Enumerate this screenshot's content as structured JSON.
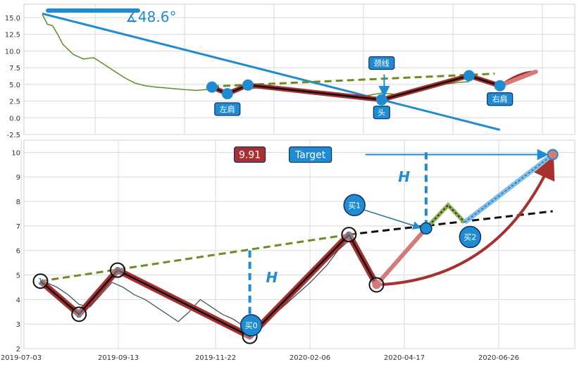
{
  "chart_data": [
    {
      "type": "line",
      "ylim": [
        -2.5,
        17
      ],
      "yticks": [
        "-2.5",
        "0.0",
        "2.5",
        "5.0",
        "7.5",
        "10.0",
        "12.5",
        "15.0"
      ],
      "grid": true,
      "angle_label": "∡48.6°",
      "series": [
        {
          "name": "",
          "points": [
            [
              0.0,
              15.5
            ],
            [
              0.01,
              14.0
            ],
            [
              0.02,
              13.8
            ],
            [
              0.03,
              12.5
            ],
            [
              0.04,
              11.0
            ],
            [
              0.06,
              9.5
            ],
            [
              0.08,
              8.8
            ],
            [
              0.1,
              9.0
            ],
            [
              0.12,
              8.0
            ],
            [
              0.14,
              7.0
            ],
            [
              0.16,
              6.0
            ],
            [
              0.18,
              5.2
            ],
            [
              0.2,
              4.8
            ],
            [
              0.22,
              4.6
            ],
            [
              0.25,
              4.4
            ],
            [
              0.28,
              4.2
            ],
            [
              0.3,
              4.1
            ],
            [
              0.33,
              4.3
            ],
            [
              0.36,
              4.0
            ],
            [
              0.38,
              4.5
            ],
            [
              0.4,
              4.3
            ],
            [
              0.43,
              4.6
            ],
            [
              0.46,
              4.2
            ],
            [
              0.49,
              3.9
            ],
            [
              0.52,
              3.8
            ],
            [
              0.55,
              3.6
            ],
            [
              0.57,
              3.5
            ],
            [
              0.6,
              3.1
            ],
            [
              0.63,
              3.3
            ],
            [
              0.66,
              3.7
            ],
            [
              0.69,
              3.5
            ],
            [
              0.72,
              3.9
            ],
            [
              0.75,
              4.4
            ],
            [
              0.78,
              5.0
            ],
            [
              0.81,
              5.3
            ],
            [
              0.83,
              5.4
            ]
          ]
        }
      ],
      "pattern_points": [
        [
          0.33,
          4.6
        ],
        [
          0.36,
          3.6
        ],
        [
          0.4,
          4.9
        ],
        [
          0.66,
          2.7
        ],
        [
          0.83,
          6.3
        ],
        [
          0.89,
          4.8
        ],
        [
          0.96,
          6.9
        ]
      ],
      "neckline": {
        "x": [
          0.33,
          0.88
        ],
        "y": [
          4.7,
          6.6
        ]
      },
      "trendline": {
        "x": [
          0.0,
          0.89
        ],
        "y": [
          15.6,
          -1.8
        ]
      },
      "labels": [
        {
          "text": "左肩",
          "x": 0.36,
          "y": 1.3
        },
        {
          "text": "头",
          "x": 0.66,
          "y": 0.8
        },
        {
          "text": "右肩",
          "x": 0.89,
          "y": 2.8
        },
        {
          "text": "颈线",
          "x": 0.66,
          "y": 8.2
        }
      ]
    },
    {
      "type": "line",
      "x_ticks": [
        "2019-07-03",
        "2019-09-13",
        "2019-11-22",
        "2020-02-06",
        "2020-04-17",
        "2020-06-26"
      ],
      "ylim": [
        2,
        10.5
      ],
      "yticks": [
        "2",
        "3",
        "4",
        "5",
        "6",
        "7",
        "8",
        "9",
        "10"
      ],
      "grid": true,
      "price_series": [
        [
          0.04,
          4.7
        ],
        [
          0.06,
          4.5
        ],
        [
          0.08,
          4.2
        ],
        [
          0.1,
          3.8
        ],
        [
          0.12,
          3.7
        ],
        [
          0.14,
          4.2
        ],
        [
          0.16,
          4.7
        ],
        [
          0.18,
          4.5
        ],
        [
          0.2,
          4.2
        ],
        [
          0.22,
          4.0
        ],
        [
          0.24,
          3.7
        ],
        [
          0.26,
          3.4
        ],
        [
          0.28,
          3.1
        ],
        [
          0.3,
          3.5
        ],
        [
          0.32,
          4.0
        ],
        [
          0.34,
          3.7
        ],
        [
          0.36,
          3.4
        ],
        [
          0.38,
          3.2
        ],
        [
          0.4,
          2.9
        ],
        [
          0.41,
          2.6
        ],
        [
          0.43,
          3.0
        ],
        [
          0.46,
          3.5
        ],
        [
          0.49,
          4.1
        ],
        [
          0.52,
          4.7
        ],
        [
          0.55,
          5.4
        ],
        [
          0.57,
          6.0
        ],
        [
          0.59,
          6.4
        ],
        [
          0.61,
          5.7
        ],
        [
          0.63,
          5.0
        ],
        [
          0.64,
          4.6
        ]
      ],
      "points": [
        {
          "n": "1",
          "x": 0.03,
          "y": 4.75
        },
        {
          "n": "2",
          "x": 0.1,
          "y": 3.4
        },
        {
          "n": "3",
          "x": 0.17,
          "y": 5.2
        },
        {
          "n": "",
          "x": 0.41,
          "y": 2.5
        },
        {
          "n": "5",
          "x": 0.59,
          "y": 6.65
        },
        {
          "n": "",
          "x": 0.64,
          "y": 4.6
        }
      ],
      "target": 9.91,
      "target_label": "Target",
      "buy_labels": [
        "买0",
        "买1",
        "买2"
      ],
      "h_label": "H"
    }
  ]
}
